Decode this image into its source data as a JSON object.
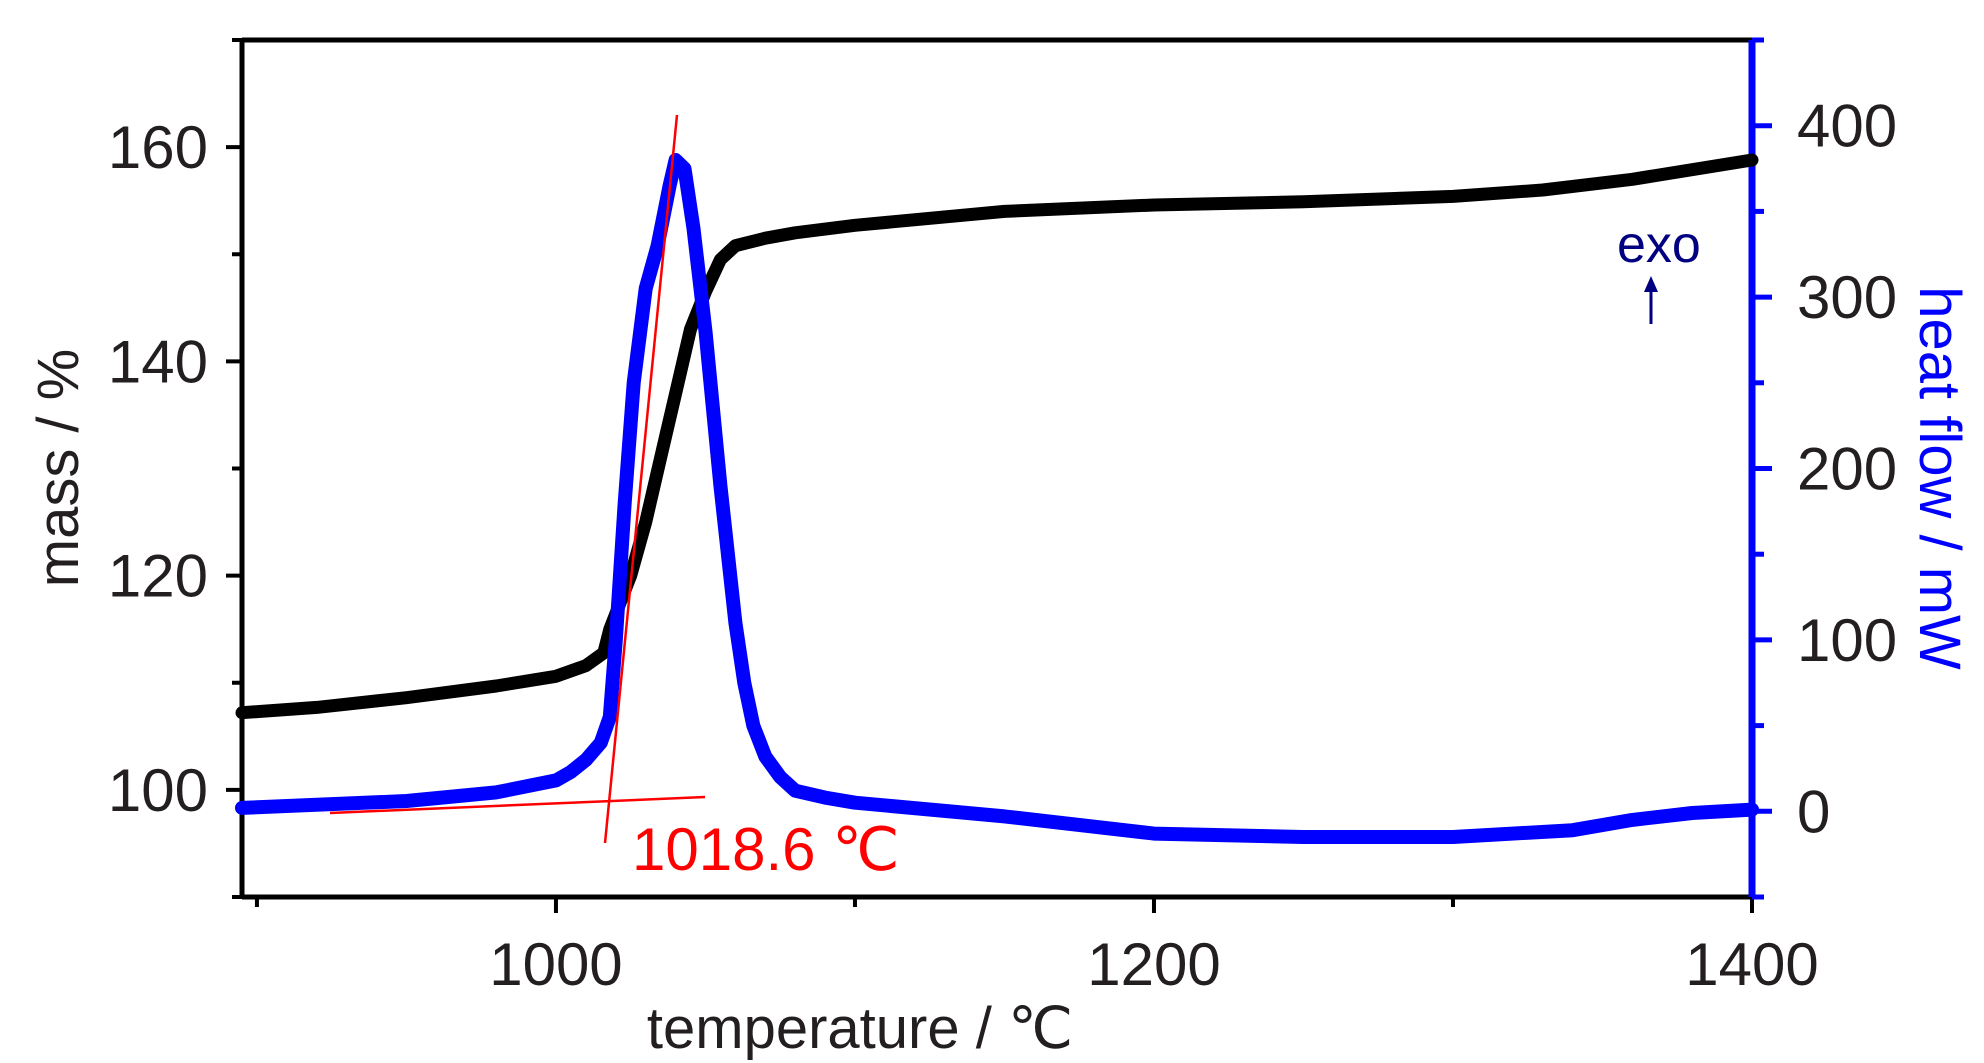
{
  "chart_data": {
    "type": "line",
    "xlabel": "temperature / ℃",
    "ylabel_left": "mass / %",
    "ylabel_right": "heat flow / mW",
    "xlim": [
      895,
      1400
    ],
    "ylim_left": [
      90,
      170
    ],
    "ylim_right": [
      -50,
      450
    ],
    "x_ticks": [
      "1000",
      "1200",
      "1400"
    ],
    "y_left_ticks": [
      "100",
      "120",
      "140",
      "160"
    ],
    "y_right_ticks": [
      "0",
      "100",
      "200",
      "300",
      "400"
    ],
    "grid": false,
    "colors": {
      "mass": "#000000",
      "heat_flow": "#0000ff",
      "annotation": "#ff0000",
      "exo": "#000080",
      "axis_right": "#0000ff"
    },
    "series": [
      {
        "axis": "left",
        "color": "#000000",
        "x": [
          895,
          920,
          950,
          980,
          1000,
          1010,
          1016,
          1018,
          1025,
          1030,
          1035,
          1040,
          1045,
          1050,
          1055,
          1060,
          1070,
          1080,
          1100,
          1150,
          1200,
          1250,
          1300,
          1330,
          1360,
          1400
        ],
        "y": [
          107.2,
          107.7,
          108.6,
          109.7,
          110.6,
          111.6,
          112.8,
          115,
          120,
          125,
          131,
          137,
          143,
          146.5,
          149.5,
          150.8,
          151.5,
          152,
          152.7,
          154,
          154.6,
          154.9,
          155.4,
          156,
          157,
          158.8
        ]
      },
      {
        "axis": "right",
        "color": "#0000ff",
        "x": [
          895,
          950,
          980,
          1000,
          1005,
          1010,
          1015,
          1018,
          1020,
          1023,
          1026,
          1030,
          1034,
          1038,
          1040,
          1043,
          1046,
          1050,
          1055,
          1060,
          1063,
          1066,
          1070,
          1075,
          1080,
          1090,
          1100,
          1150,
          1200,
          1250,
          1300,
          1340,
          1360,
          1380,
          1400
        ],
        "y": [
          2,
          6,
          11,
          18,
          23,
          30,
          40,
          55,
          100,
          180,
          250,
          305,
          330,
          365,
          380,
          375,
          340,
          280,
          190,
          110,
          75,
          50,
          32,
          20,
          12,
          8,
          5,
          -3,
          -13,
          -15,
          -15,
          -11,
          -5,
          -1,
          1
        ]
      }
    ],
    "annotations": {
      "onset_label": "1018.6 ℃",
      "exo_label": "exo"
    }
  }
}
